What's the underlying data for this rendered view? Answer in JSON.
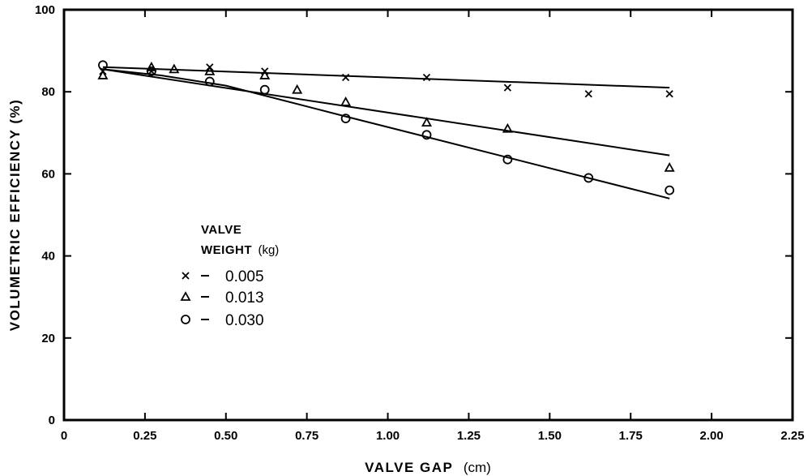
{
  "chart_data": {
    "type": "scatter",
    "xlabel": "VALVE GAP",
    "xunit": "(cm)",
    "ylabel": "VOLUMETRIC EFFICIENCY (%)",
    "xlim": [
      0,
      2.25
    ],
    "ylim": [
      0,
      100
    ],
    "x_ticks": [
      "0",
      "0.25",
      "0.50",
      "0.75",
      "1.00",
      "1.25",
      "1.50",
      "1.75",
      "2.00",
      "2.25"
    ],
    "y_ticks": [
      "0",
      "20",
      "40",
      "60",
      "80",
      "100"
    ],
    "grid": false,
    "legend": {
      "title_line1": "VALVE",
      "title_line2": "WEIGHT",
      "title_unit": "(kg)",
      "placement": "center-left"
    },
    "series": [
      {
        "name": "0.005",
        "marker": "x",
        "points": [
          [
            0.12,
            85
          ],
          [
            0.27,
            85
          ],
          [
            0.45,
            86
          ],
          [
            0.62,
            85
          ],
          [
            0.87,
            83.5
          ],
          [
            1.12,
            83.5
          ],
          [
            1.37,
            81
          ],
          [
            1.62,
            79.5
          ],
          [
            1.87,
            79.5
          ]
        ],
        "fit": [
          [
            0.12,
            86
          ],
          [
            1.87,
            81
          ]
        ]
      },
      {
        "name": "0.013",
        "marker": "triangle",
        "points": [
          [
            0.12,
            84
          ],
          [
            0.27,
            86
          ],
          [
            0.34,
            85.5
          ],
          [
            0.45,
            85
          ],
          [
            0.62,
            84
          ],
          [
            0.72,
            80.5
          ],
          [
            0.87,
            77.5
          ],
          [
            1.12,
            72.5
          ],
          [
            1.37,
            71
          ],
          [
            1.87,
            61.5
          ]
        ],
        "fit": [
          [
            0.12,
            85.5
          ],
          [
            1.87,
            64.5
          ]
        ]
      },
      {
        "name": "0.030",
        "marker": "circle",
        "points": [
          [
            0.12,
            86.5
          ],
          [
            0.27,
            85
          ],
          [
            0.45,
            82.5
          ],
          [
            0.62,
            80.5
          ],
          [
            0.87,
            73.5
          ],
          [
            1.12,
            69.5
          ],
          [
            1.37,
            63.5
          ],
          [
            1.62,
            59
          ],
          [
            1.87,
            56
          ]
        ],
        "fit": [
          [
            0.12,
            85.5
          ],
          [
            0.3,
            84
          ],
          [
            0.5,
            81.5
          ],
          [
            0.87,
            74
          ],
          [
            1.87,
            54
          ]
        ]
      }
    ]
  }
}
